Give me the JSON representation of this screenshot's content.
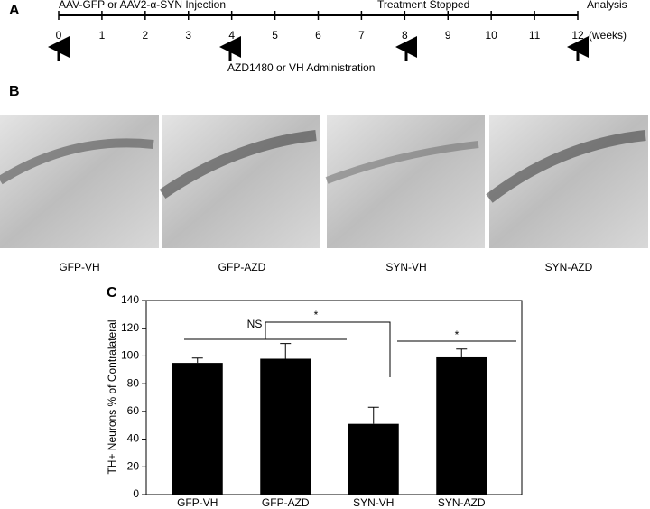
{
  "panel_a": {
    "label": "A",
    "weeks": [
      0,
      1,
      2,
      3,
      4,
      5,
      6,
      7,
      8,
      9,
      10,
      11,
      12
    ],
    "unit": "(weeks)",
    "events_top": [
      "AAV-GFP or AAV2-α-SYN Injection",
      "Treatment Stopped",
      "Analysis"
    ],
    "events_bottom": [
      "AZD1480 or VH Administration"
    ]
  },
  "panel_b": {
    "label": "B",
    "captions": [
      "GFP-VH",
      "GFP-AZD",
      "SYN-VH",
      "SYN-AZD"
    ]
  },
  "chart_data": {
    "type": "bar",
    "label": "C",
    "ylabel": "TH+ Neurons % of Contralateral",
    "categories": [
      "GFP-VH",
      "GFP-AZD",
      "SYN-VH",
      "SYN-AZD"
    ],
    "values": [
      95,
      98,
      51,
      99
    ],
    "errors": [
      3.5,
      11,
      12,
      6
    ],
    "color": "#000000",
    "ylim": [
      0,
      140
    ],
    "yticks": [
      0,
      20,
      40,
      60,
      80,
      100,
      120,
      140
    ],
    "annotations": [
      "NS",
      "*",
      "*"
    ]
  }
}
